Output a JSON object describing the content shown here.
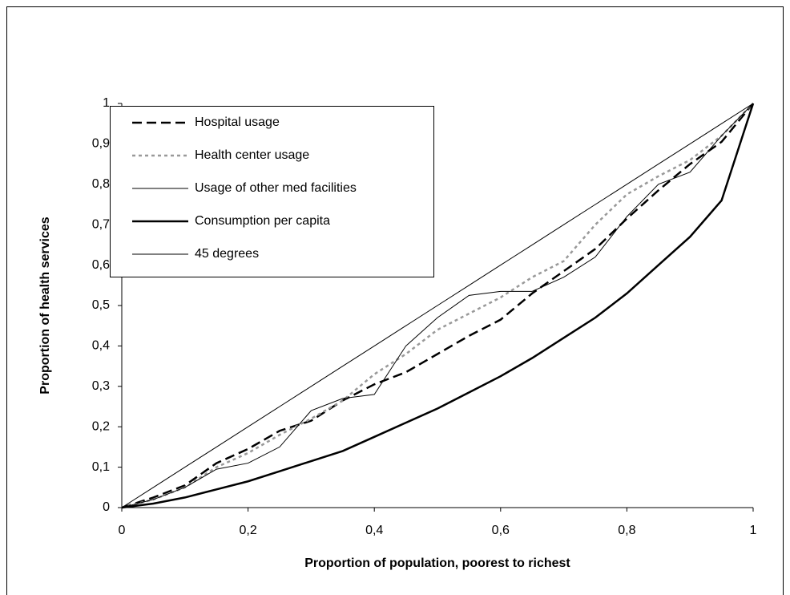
{
  "chart_data": {
    "type": "line",
    "x_label": "Proportion of population, poorest to richest",
    "y_label": "Proportion of health services",
    "x": [
      0,
      0.05,
      0.1,
      0.15,
      0.2,
      0.25,
      0.3,
      0.35,
      0.4,
      0.45,
      0.5,
      0.55,
      0.6,
      0.65,
      0.7,
      0.75,
      0.8,
      0.85,
      0.9,
      0.95,
      1
    ],
    "series": [
      {
        "name": "Hospital usage",
        "color": "#000000",
        "line_style": "dashed",
        "weight": "bold",
        "values": [
          0,
          0.025,
          0.055,
          0.11,
          0.145,
          0.19,
          0.215,
          0.265,
          0.305,
          0.335,
          0.38,
          0.425,
          0.465,
          0.53,
          0.585,
          0.64,
          0.715,
          0.785,
          0.85,
          0.905,
          1
        ]
      },
      {
        "name": "Health center usage",
        "color": "#999999",
        "line_style": "dotted",
        "weight": "bold",
        "values": [
          0,
          0.02,
          0.05,
          0.1,
          0.135,
          0.18,
          0.22,
          0.265,
          0.33,
          0.38,
          0.44,
          0.48,
          0.52,
          0.57,
          0.61,
          0.7,
          0.775,
          0.82,
          0.86,
          0.92,
          1
        ]
      },
      {
        "name": "Usage of other med facilities",
        "color": "#000000",
        "line_style": "solid",
        "weight": "normal",
        "values": [
          0,
          0.02,
          0.05,
          0.095,
          0.11,
          0.15,
          0.24,
          0.27,
          0.28,
          0.4,
          0.47,
          0.525,
          0.535,
          0.535,
          0.57,
          0.62,
          0.72,
          0.8,
          0.83,
          0.92,
          1
        ]
      },
      {
        "name": "Consumption per capita",
        "color": "#000000",
        "line_style": "solid",
        "weight": "bold",
        "values": [
          0,
          0.01,
          0.025,
          0.045,
          0.065,
          0.09,
          0.115,
          0.14,
          0.175,
          0.21,
          0.245,
          0.285,
          0.325,
          0.37,
          0.42,
          0.47,
          0.53,
          0.6,
          0.67,
          0.76,
          1
        ]
      },
      {
        "name": "45 degrees",
        "color": "#000000",
        "line_style": "solid",
        "weight": "normal",
        "values": [
          0,
          0.05,
          0.1,
          0.15,
          0.2,
          0.25,
          0.3,
          0.35,
          0.4,
          0.45,
          0.5,
          0.55,
          0.6,
          0.65,
          0.7,
          0.75,
          0.8,
          0.85,
          0.9,
          0.95,
          1
        ]
      }
    ],
    "xlim": [
      0,
      1
    ],
    "xticks": [
      0,
      {
        "value": 0.2,
        "label": "0,2"
      },
      {
        "value": 0.4,
        "label": "0,4"
      },
      {
        "value": 0.6,
        "label": "0,6"
      },
      {
        "value": 0.8,
        "label": "0,8"
      },
      1
    ],
    "ylim": [
      0,
      1
    ],
    "yticks": [
      0,
      {
        "value": 0.1,
        "label": "0,1"
      },
      {
        "value": 0.2,
        "label": "0,2"
      },
      {
        "value": 0.3,
        "label": "0,3"
      },
      {
        "value": 0.4,
        "label": "0,4"
      },
      {
        "value": 0.5,
        "label": "0,5"
      },
      {
        "value": 0.6,
        "label": "0,6"
      },
      {
        "value": 0.7,
        "label": "0,7"
      },
      {
        "value": 0.8,
        "label": "0,8"
      },
      {
        "value": 0.9,
        "label": "0,9"
      },
      1
    ],
    "grid": false,
    "legend": "top-left"
  }
}
